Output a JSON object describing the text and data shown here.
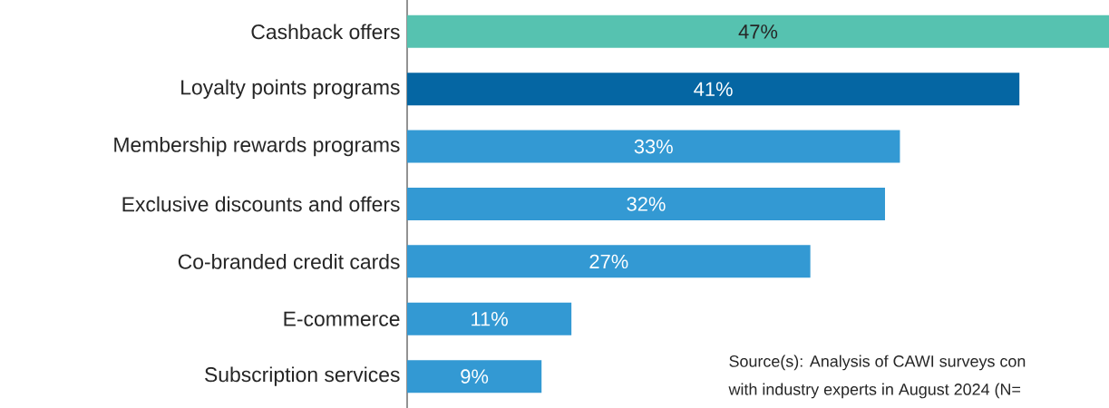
{
  "chart_data": {
    "type": "bar",
    "orientation": "horizontal",
    "categories": [
      "Cashback offers",
      "Loyalty points programs",
      "Membership rewards programs",
      "Exclusive discounts and offers",
      "Co-branded credit cards",
      "E-commerce",
      "Subscription services"
    ],
    "values": [
      47,
      41,
      33,
      32,
      27,
      11,
      9
    ],
    "value_labels": [
      "47%",
      "41%",
      "33%",
      "32%",
      "27%",
      "11%",
      "9%"
    ],
    "colors": [
      "#56c2b0",
      "#0566a3",
      "#3399d3",
      "#3399d3",
      "#3399d3",
      "#3399d3",
      "#3399d3"
    ],
    "annotations": [
      "Source(s): Analysis of CAWI surveys con",
      "with industry experts in August 2024 (N="
    ]
  }
}
